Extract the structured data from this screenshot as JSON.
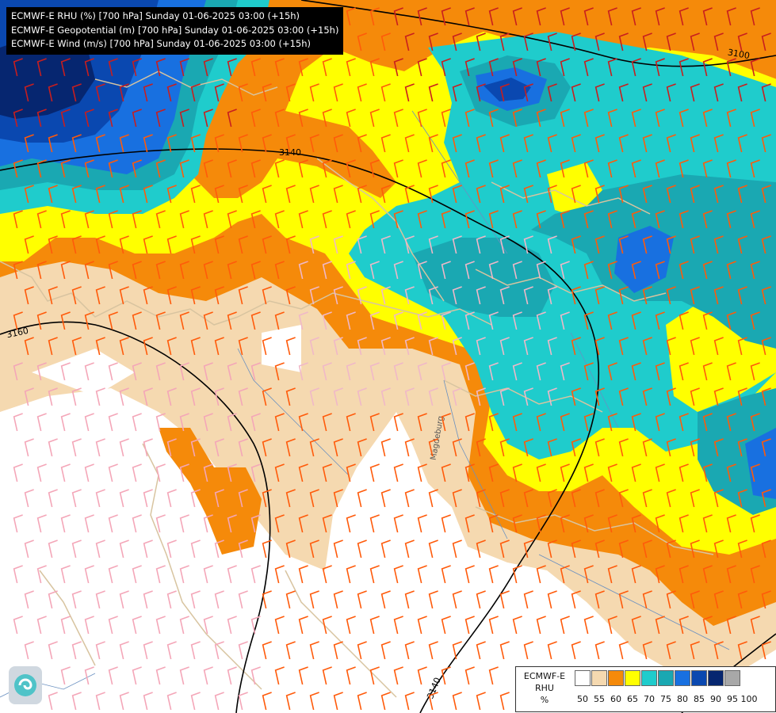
{
  "titles": [
    "ECMWF-E RHU (%) [700 hPa] Sunday 01-06-2025 03:00 (+15h)",
    "ECMWF-E Geopotential (m) [700 hPa] Sunday 01-06-2025 03:00 (+15h)",
    "ECMWF-E Wind (m/s) [700 hPa] Sunday 01-06-2025 03:00 (+15h)"
  ],
  "legend": {
    "model": "ECMWF-E",
    "variable": "RHU",
    "unit": "%",
    "ticks": [
      "50",
      "55",
      "60",
      "65",
      "70",
      "75",
      "80",
      "85",
      "90",
      "95",
      "100"
    ],
    "colors": [
      "#ffffff",
      "#f5d9b0",
      "#f58a0a",
      "#ffff00",
      "#1fcccc",
      "#1aa8b2",
      "#1870e0",
      "#0a48b0",
      "#062670",
      "#a8a8a8",
      "#686868"
    ]
  },
  "contour_labels": [
    "3100",
    "3140",
    "3160",
    "3140"
  ],
  "city_label": "Magdeburg",
  "logo": "logo-icon"
}
